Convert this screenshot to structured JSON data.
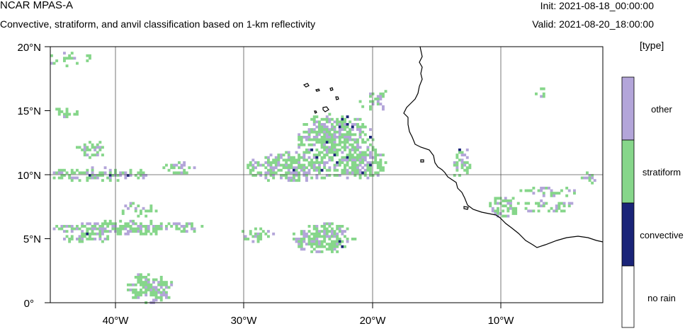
{
  "header": {
    "model": "NCAR MPAS-A",
    "description": "Convective, stratiform, and anvil classification based on 1-km reflectivity",
    "init": "Init: 2021-08-18_00:00:00",
    "valid": "Valid: 2021-08-20_18:00:00"
  },
  "map": {
    "lat_ticks": [
      "20°N",
      "15°N",
      "10°N",
      "5°N",
      "0°"
    ],
    "lon_ticks": [
      "40°W",
      "30°W",
      "20°W",
      "10°W"
    ],
    "extent": {
      "lon_min": -45.5,
      "lon_max": -2,
      "lat_min": 0,
      "lat_max": 20
    }
  },
  "colorbar": {
    "units": "[type]",
    "categories": [
      {
        "label": "other",
        "color": "#b3a5d9"
      },
      {
        "label": "stratiform",
        "color": "#86d68a"
      },
      {
        "label": "convective",
        "color": "#1a2478"
      },
      {
        "label": "no rain",
        "color": "#ffffff"
      }
    ]
  },
  "colors": {
    "other": "#b3a5d9",
    "stratiform": "#86d68a",
    "convective": "#1a2478",
    "coast": "#000000",
    "grid": "#555555"
  }
}
